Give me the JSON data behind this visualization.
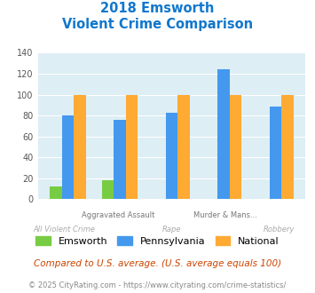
{
  "title_line1": "2018 Emsworth",
  "title_line2": "Violent Crime Comparison",
  "emsworth": [
    12,
    18,
    0,
    0,
    0
  ],
  "pennsylvania": [
    80,
    76,
    83,
    124,
    89
  ],
  "national": [
    100,
    100,
    100,
    100,
    100
  ],
  "color_emsworth": "#77cc44",
  "color_pennsylvania": "#4499ee",
  "color_national": "#ffaa33",
  "color_title": "#1177cc",
  "color_bg": "#ddeef4",
  "ylim": [
    0,
    140
  ],
  "yticks": [
    0,
    20,
    40,
    60,
    80,
    100,
    120,
    140
  ],
  "line1_labels": [
    "",
    "Aggravated Assault",
    "",
    "Murder & Mans...",
    ""
  ],
  "line2_labels": [
    "All Violent Crime",
    "",
    "Rape",
    "",
    "Robbery"
  ],
  "legend_labels": [
    "Emsworth",
    "Pennsylvania",
    "National"
  ],
  "footnote1": "Compared to U.S. average. (U.S. average equals 100)",
  "footnote2": "© 2025 CityRating.com - https://www.cityrating.com/crime-statistics/",
  "color_footnote1": "#cc4400",
  "color_footnote2": "#888888"
}
